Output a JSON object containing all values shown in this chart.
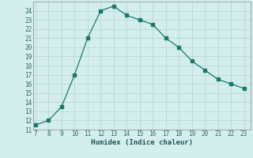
{
  "x": [
    7,
    8,
    9,
    10,
    11,
    12,
    13,
    14,
    15,
    16,
    17,
    18,
    19,
    20,
    21,
    22,
    23
  ],
  "y": [
    11.5,
    12.0,
    13.5,
    17.0,
    21.0,
    24.0,
    24.5,
    23.5,
    23.0,
    22.5,
    21.0,
    20.0,
    18.5,
    17.5,
    16.5,
    16.0,
    15.5
  ],
  "xlabel": "Humidex (Indice chaleur)",
  "ylim": [
    11,
    25.0
  ],
  "xlim": [
    6.8,
    23.5
  ],
  "yticks": [
    11,
    12,
    13,
    14,
    15,
    16,
    17,
    18,
    19,
    20,
    21,
    22,
    23,
    24
  ],
  "xticks": [
    7,
    8,
    9,
    10,
    11,
    12,
    13,
    14,
    15,
    16,
    17,
    18,
    19,
    20,
    21,
    22,
    23
  ],
  "line_color": "#1a7a6a",
  "bg_color": "#d4eeee",
  "grid_color": "#b8d8d8",
  "marker": "s",
  "marker_size": 2.5
}
